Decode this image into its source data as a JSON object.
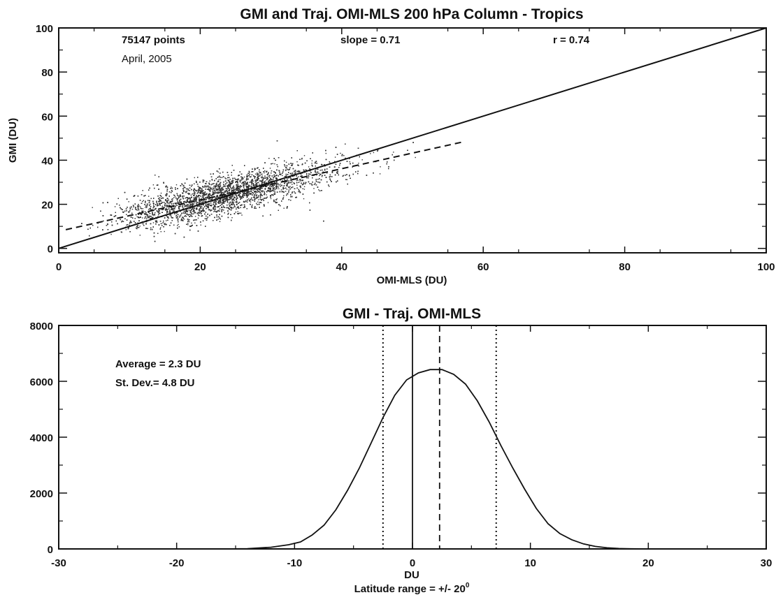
{
  "chart_data": [
    {
      "type": "scatter",
      "title": "GMI and Traj. OMI-MLS 200 hPa Column - Tropics",
      "xlabel": "OMI-MLS (DU)",
      "ylabel": "GMI (DU)",
      "xlim": [
        0,
        100
      ],
      "ylim": [
        -2,
        100
      ],
      "xticks": [
        "0",
        "20",
        "40",
        "60",
        "80",
        "100"
      ],
      "yticks": [
        "0",
        "20",
        "40",
        "60",
        "80",
        "100"
      ],
      "xtick_values": [
        0,
        20,
        40,
        60,
        80,
        100
      ],
      "ytick_values": [
        0,
        20,
        40,
        60,
        80,
        100
      ],
      "annotations": {
        "points": "75147 points",
        "date": "April, 2005",
        "slope": "slope = 0.71",
        "r": "r  = 0.74"
      },
      "cloud": {
        "n_points": 75147,
        "x_mean": 22,
        "x_sd": 7,
        "x_range": [
          3,
          57
        ],
        "slope": 0.71,
        "r": 0.74
      },
      "lines": [
        {
          "name": "1:1",
          "style": "solid",
          "x": [
            0,
            100
          ],
          "y": [
            0,
            100
          ]
        },
        {
          "name": "fit",
          "style": "dashed",
          "x": [
            1,
            57
          ],
          "y": [
            8.5,
            48.2
          ]
        }
      ],
      "point_color": "#333333"
    },
    {
      "type": "line",
      "title": "GMI - Traj. OMI-MLS",
      "xlabel": "DU",
      "subtitle_main": "Latitude range = +/- 20",
      "subtitle_sup": "0",
      "xlim": [
        -30,
        30
      ],
      "ylim": [
        0,
        8000
      ],
      "xticks": [
        "-30",
        "-20",
        "-10",
        "0",
        "10",
        "20",
        "30"
      ],
      "yticks": [
        "0",
        "2000",
        "4000",
        "6000",
        "8000"
      ],
      "xtick_values": [
        -30,
        -20,
        -10,
        0,
        10,
        20,
        30
      ],
      "ytick_values": [
        0,
        2000,
        4000,
        6000,
        8000
      ],
      "annotations": {
        "average": "Average = 2.3 DU",
        "stdev": "St. Dev.= 4.8 DU"
      },
      "series": [
        {
          "x": [
            -30,
            -20,
            -16,
            -14,
            -12,
            -10.5,
            -9.5,
            -8.5,
            -7.5,
            -6.5,
            -5.5,
            -4.5,
            -3.5,
            -2.5,
            -1.5,
            -0.5,
            0.5,
            1.5,
            2.5,
            3.5,
            4.5,
            5.5,
            6.5,
            7.5,
            8.5,
            9.5,
            10.5,
            11.5,
            12.5,
            13.5,
            14.5,
            15.5,
            16.5,
            17.5,
            18.5,
            20,
            30
          ],
          "y": [
            0,
            0,
            0,
            10,
            60,
            150,
            250,
            500,
            850,
            1400,
            2100,
            2900,
            3800,
            4700,
            5500,
            6050,
            6300,
            6420,
            6420,
            6250,
            5900,
            5300,
            4550,
            3700,
            2900,
            2150,
            1450,
            900,
            550,
            330,
            180,
            90,
            40,
            15,
            5,
            0,
            0
          ]
        }
      ],
      "vlines": [
        {
          "name": "zero",
          "style": "solid",
          "x": 0
        },
        {
          "name": "mean",
          "style": "dashed",
          "x": 2.3
        },
        {
          "name": "mean-minus-sd",
          "style": "dotted",
          "x": -2.5
        },
        {
          "name": "mean-plus-sd",
          "style": "dotted",
          "x": 7.1
        }
      ],
      "line_color": "#111111"
    }
  ]
}
